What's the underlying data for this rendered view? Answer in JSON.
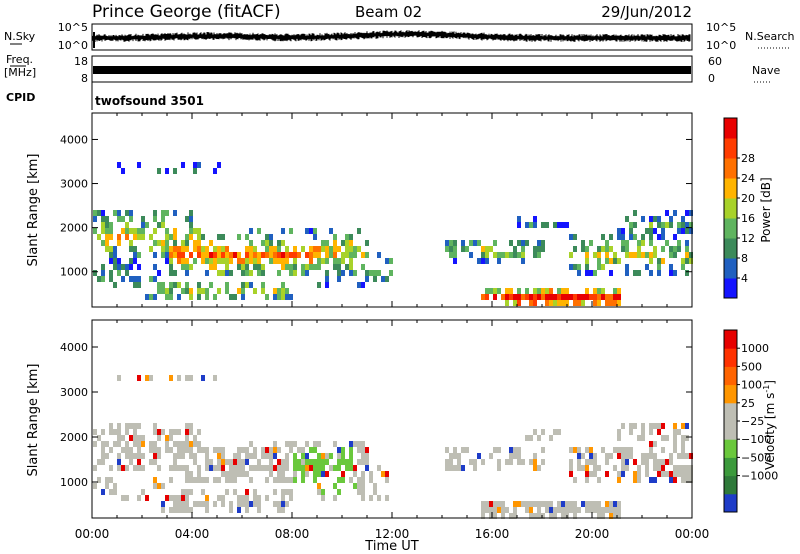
{
  "header": {
    "station": "Prince George (fitACF)",
    "beam": "Beam 02",
    "date": "29/Jun/2012"
  },
  "strips": {
    "nsky_label": "N.Sky",
    "nsky_ticks": [
      "10^5",
      "10^0"
    ],
    "nsearch_label": "N.Search",
    "nsearch_ticks": [
      "10^5",
      "10^0"
    ],
    "freq_label": "Freq.",
    "freq_unit": "[MHz]",
    "freq_ticks": [
      "18",
      "8"
    ],
    "nave_label": "Nave",
    "nave_ticks": [
      "60",
      "0"
    ],
    "cpid_label": "CPID",
    "cpid_value": "twofsound 3501"
  },
  "chart_data": [
    {
      "type": "heatmap",
      "name": "power",
      "ylabel": "Slant Range [km]",
      "ylim": [
        200,
        4600
      ],
      "yticks": [
        1000,
        2000,
        3000,
        4000
      ],
      "xlim": [
        0,
        24
      ],
      "colorbar": {
        "label": "Power [dB]",
        "ticks": [
          "4",
          "8",
          "12",
          "16",
          "20",
          "24",
          "28"
        ],
        "colors": [
          "#1414ff",
          "#2060c0",
          "#3c8a5a",
          "#5fb45f",
          "#a8d22a",
          "#ffb400",
          "#ff7000",
          "#ff3c00",
          "#e80000"
        ]
      }
    },
    {
      "type": "heatmap",
      "name": "velocity",
      "xlabel": "Time UT",
      "ylabel": "Slant Range [km]",
      "ylim": [
        200,
        4600
      ],
      "yticks": [
        1000,
        2000,
        3000,
        4000
      ],
      "xlim": [
        0,
        24
      ],
      "xticks": [
        "00:00",
        "04:00",
        "08:00",
        "12:00",
        "16:00",
        "20:00",
        "00:00"
      ],
      "colorbar": {
        "label": "Velocity [m s",
        "label_sup": "-1",
        "label_close": "]",
        "ticks": [
          "1000",
          "500",
          "100",
          "25",
          "−25",
          "−100",
          "−500",
          "−1000"
        ],
        "colors": [
          "#1e3cc8",
          "#2f7a3a",
          "#3c9a3c",
          "#6ac83c",
          "#bebeb4",
          "#bebeb4",
          "#ff9600",
          "#ff6400",
          "#ff3200",
          "#e60000"
        ]
      }
    }
  ]
}
